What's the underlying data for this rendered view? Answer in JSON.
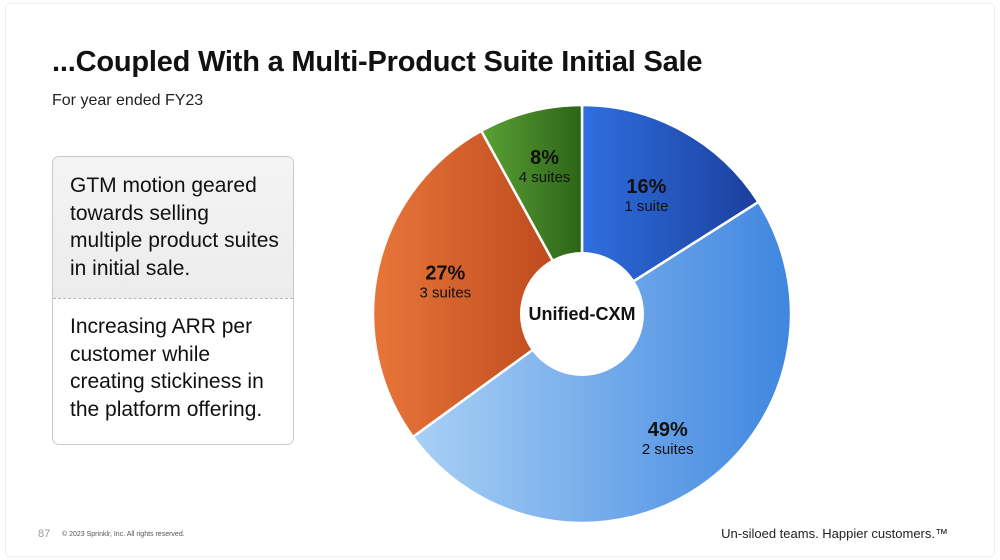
{
  "header": {
    "title": "...Coupled With a Multi-Product Suite Initial Sale",
    "subtitle": "For year ended FY23"
  },
  "callout": {
    "paragraph_1": "GTM motion geared towards selling multiple product suites in initial sale.",
    "paragraph_2": "Increasing ARR per customer while creating stickiness in the platform offering."
  },
  "footer": {
    "page_number": "87",
    "copyright": "© 2023 Sprinklr, Inc. All rights reserved.",
    "tagline": "Un-siloed teams. Happier customers.™"
  },
  "chart_data": {
    "type": "pie",
    "center_label": "Unified-CXM",
    "slices": [
      {
        "percent_label": "16%",
        "sub_label": "1 suite",
        "value": 16,
        "color_start": "#2f6fe0",
        "color_end": "#1b3f9c"
      },
      {
        "percent_label": "49%",
        "sub_label": "2 suites",
        "value": 49,
        "color_start": "#a9d0f5",
        "color_end": "#3f86e0"
      },
      {
        "percent_label": "27%",
        "sub_label": "3 suites",
        "value": 27,
        "color_start": "#e8763a",
        "color_end": "#b8441a"
      },
      {
        "percent_label": "8%",
        "sub_label": "4 suites",
        "value": 8,
        "color_start": "#5aa135",
        "color_end": "#2d6418"
      }
    ]
  }
}
